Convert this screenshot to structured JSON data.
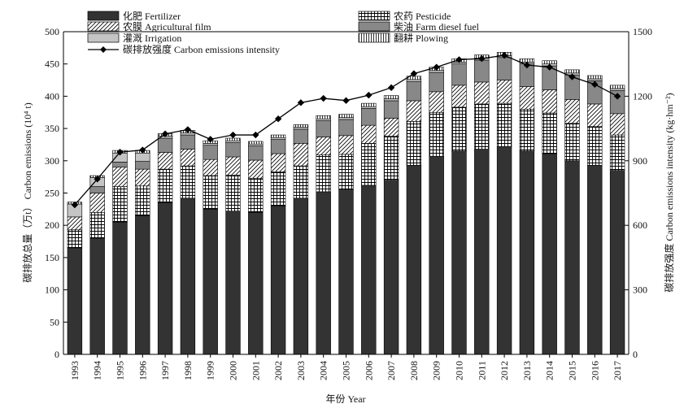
{
  "chart_data": {
    "type": "bar",
    "stacked": true,
    "xlabel": "年份 Year",
    "ylabel_left": "碳排放总量（万t） Carbon emissions (10⁴ t)",
    "ylabel_right": "碳排放强度 Carbon emissions intensity (kg·hm⁻²)",
    "ylim_left": [
      0,
      500
    ],
    "ylim_right": [
      0,
      1500
    ],
    "yticks_left": [
      0,
      50,
      100,
      150,
      200,
      250,
      300,
      350,
      400,
      450,
      500
    ],
    "yticks_right": [
      0,
      300,
      600,
      900,
      1200,
      1500
    ],
    "categories": [
      "1993",
      "1994",
      "1995",
      "1996",
      "1997",
      "1998",
      "1999",
      "2000",
      "2001",
      "2002",
      "2003",
      "2004",
      "2005",
      "2006",
      "2007",
      "2008",
      "2009",
      "2010",
      "2011",
      "2012",
      "2013",
      "2014",
      "2015",
      "2016",
      "2017"
    ],
    "series": [
      {
        "name": "化肥 Fertilizer",
        "pattern": "solid-dark",
        "color": "#333333",
        "values": [
          165,
          180,
          205,
          215,
          235,
          242,
          225,
          222,
          220,
          230,
          242,
          252,
          255,
          262,
          270,
          293,
          307,
          315,
          318,
          322,
          315,
          311,
          300,
          293,
          285
        ]
      },
      {
        "name": "农药 Pesticide",
        "pattern": "grid",
        "color": "#000000",
        "values": [
          28,
          40,
          55,
          46,
          52,
          50,
          52,
          56,
          53,
          53,
          50,
          57,
          55,
          65,
          68,
          68,
          68,
          68,
          70,
          67,
          65,
          63,
          58,
          60,
          55
        ]
      },
      {
        "name": "农膜 Agricultural film",
        "pattern": "diagonal",
        "color": "#000000",
        "values": [
          20,
          30,
          30,
          26,
          26,
          26,
          25,
          28,
          28,
          28,
          35,
          28,
          29,
          28,
          28,
          32,
          32,
          34,
          34,
          36,
          35,
          36,
          37,
          35,
          33
        ]
      },
      {
        "name": "柴油 Farm diesel fuel",
        "pattern": "solid-medium",
        "color": "#888888",
        "values": [
          0,
          10,
          8,
          12,
          22,
          22,
          22,
          22,
          22,
          22,
          22,
          25,
          25,
          26,
          27,
          30,
          30,
          33,
          34,
          35,
          35,
          37,
          38,
          36,
          36
        ]
      },
      {
        "name": "灌溉 Irrigation",
        "pattern": "solid-light",
        "color": "#c4c4c4",
        "values": [
          20,
          14,
          14,
          13,
          3,
          3,
          3,
          3,
          3,
          3,
          3,
          3,
          3,
          3,
          3,
          3,
          3,
          3,
          3,
          3,
          3,
          3,
          3,
          3,
          3
        ]
      },
      {
        "name": "翻耕 Plowing",
        "pattern": "vertical",
        "color": "#000000",
        "values": [
          3,
          3,
          4,
          4,
          4,
          4,
          4,
          4,
          4,
          4,
          4,
          5,
          5,
          5,
          5,
          5,
          5,
          5,
          5,
          5,
          5,
          5,
          5,
          5,
          5
        ]
      }
    ],
    "line": {
      "name": "碳排放强度 Carbon emissions intensity",
      "axis": "right",
      "values": [
        695,
        815,
        940,
        950,
        1025,
        1045,
        1000,
        1020,
        1020,
        1095,
        1170,
        1190,
        1180,
        1205,
        1240,
        1305,
        1335,
        1370,
        1375,
        1390,
        1345,
        1335,
        1290,
        1255,
        1200
      ]
    },
    "legend": [
      {
        "key": "fert",
        "label": "化肥 Fertilizer",
        "pattern": "solid-dark"
      },
      {
        "key": "pest",
        "label": "农药 Pesticide",
        "pattern": "grid"
      },
      {
        "key": "film",
        "label": "农膜 Agricultural film",
        "pattern": "diagonal"
      },
      {
        "key": "diesel",
        "label": "柴油 Farm diesel fuel",
        "pattern": "solid-medium"
      },
      {
        "key": "irrig",
        "label": "灌溉 Irrigation",
        "pattern": "solid-light"
      },
      {
        "key": "plow",
        "label": "翻耕 Plowing",
        "pattern": "vertical"
      },
      {
        "key": "line",
        "label": "碳排放强度 Carbon emissions intensity",
        "pattern": "line-diamond"
      }
    ],
    "legend_placement": "top-left",
    "grid": false
  }
}
